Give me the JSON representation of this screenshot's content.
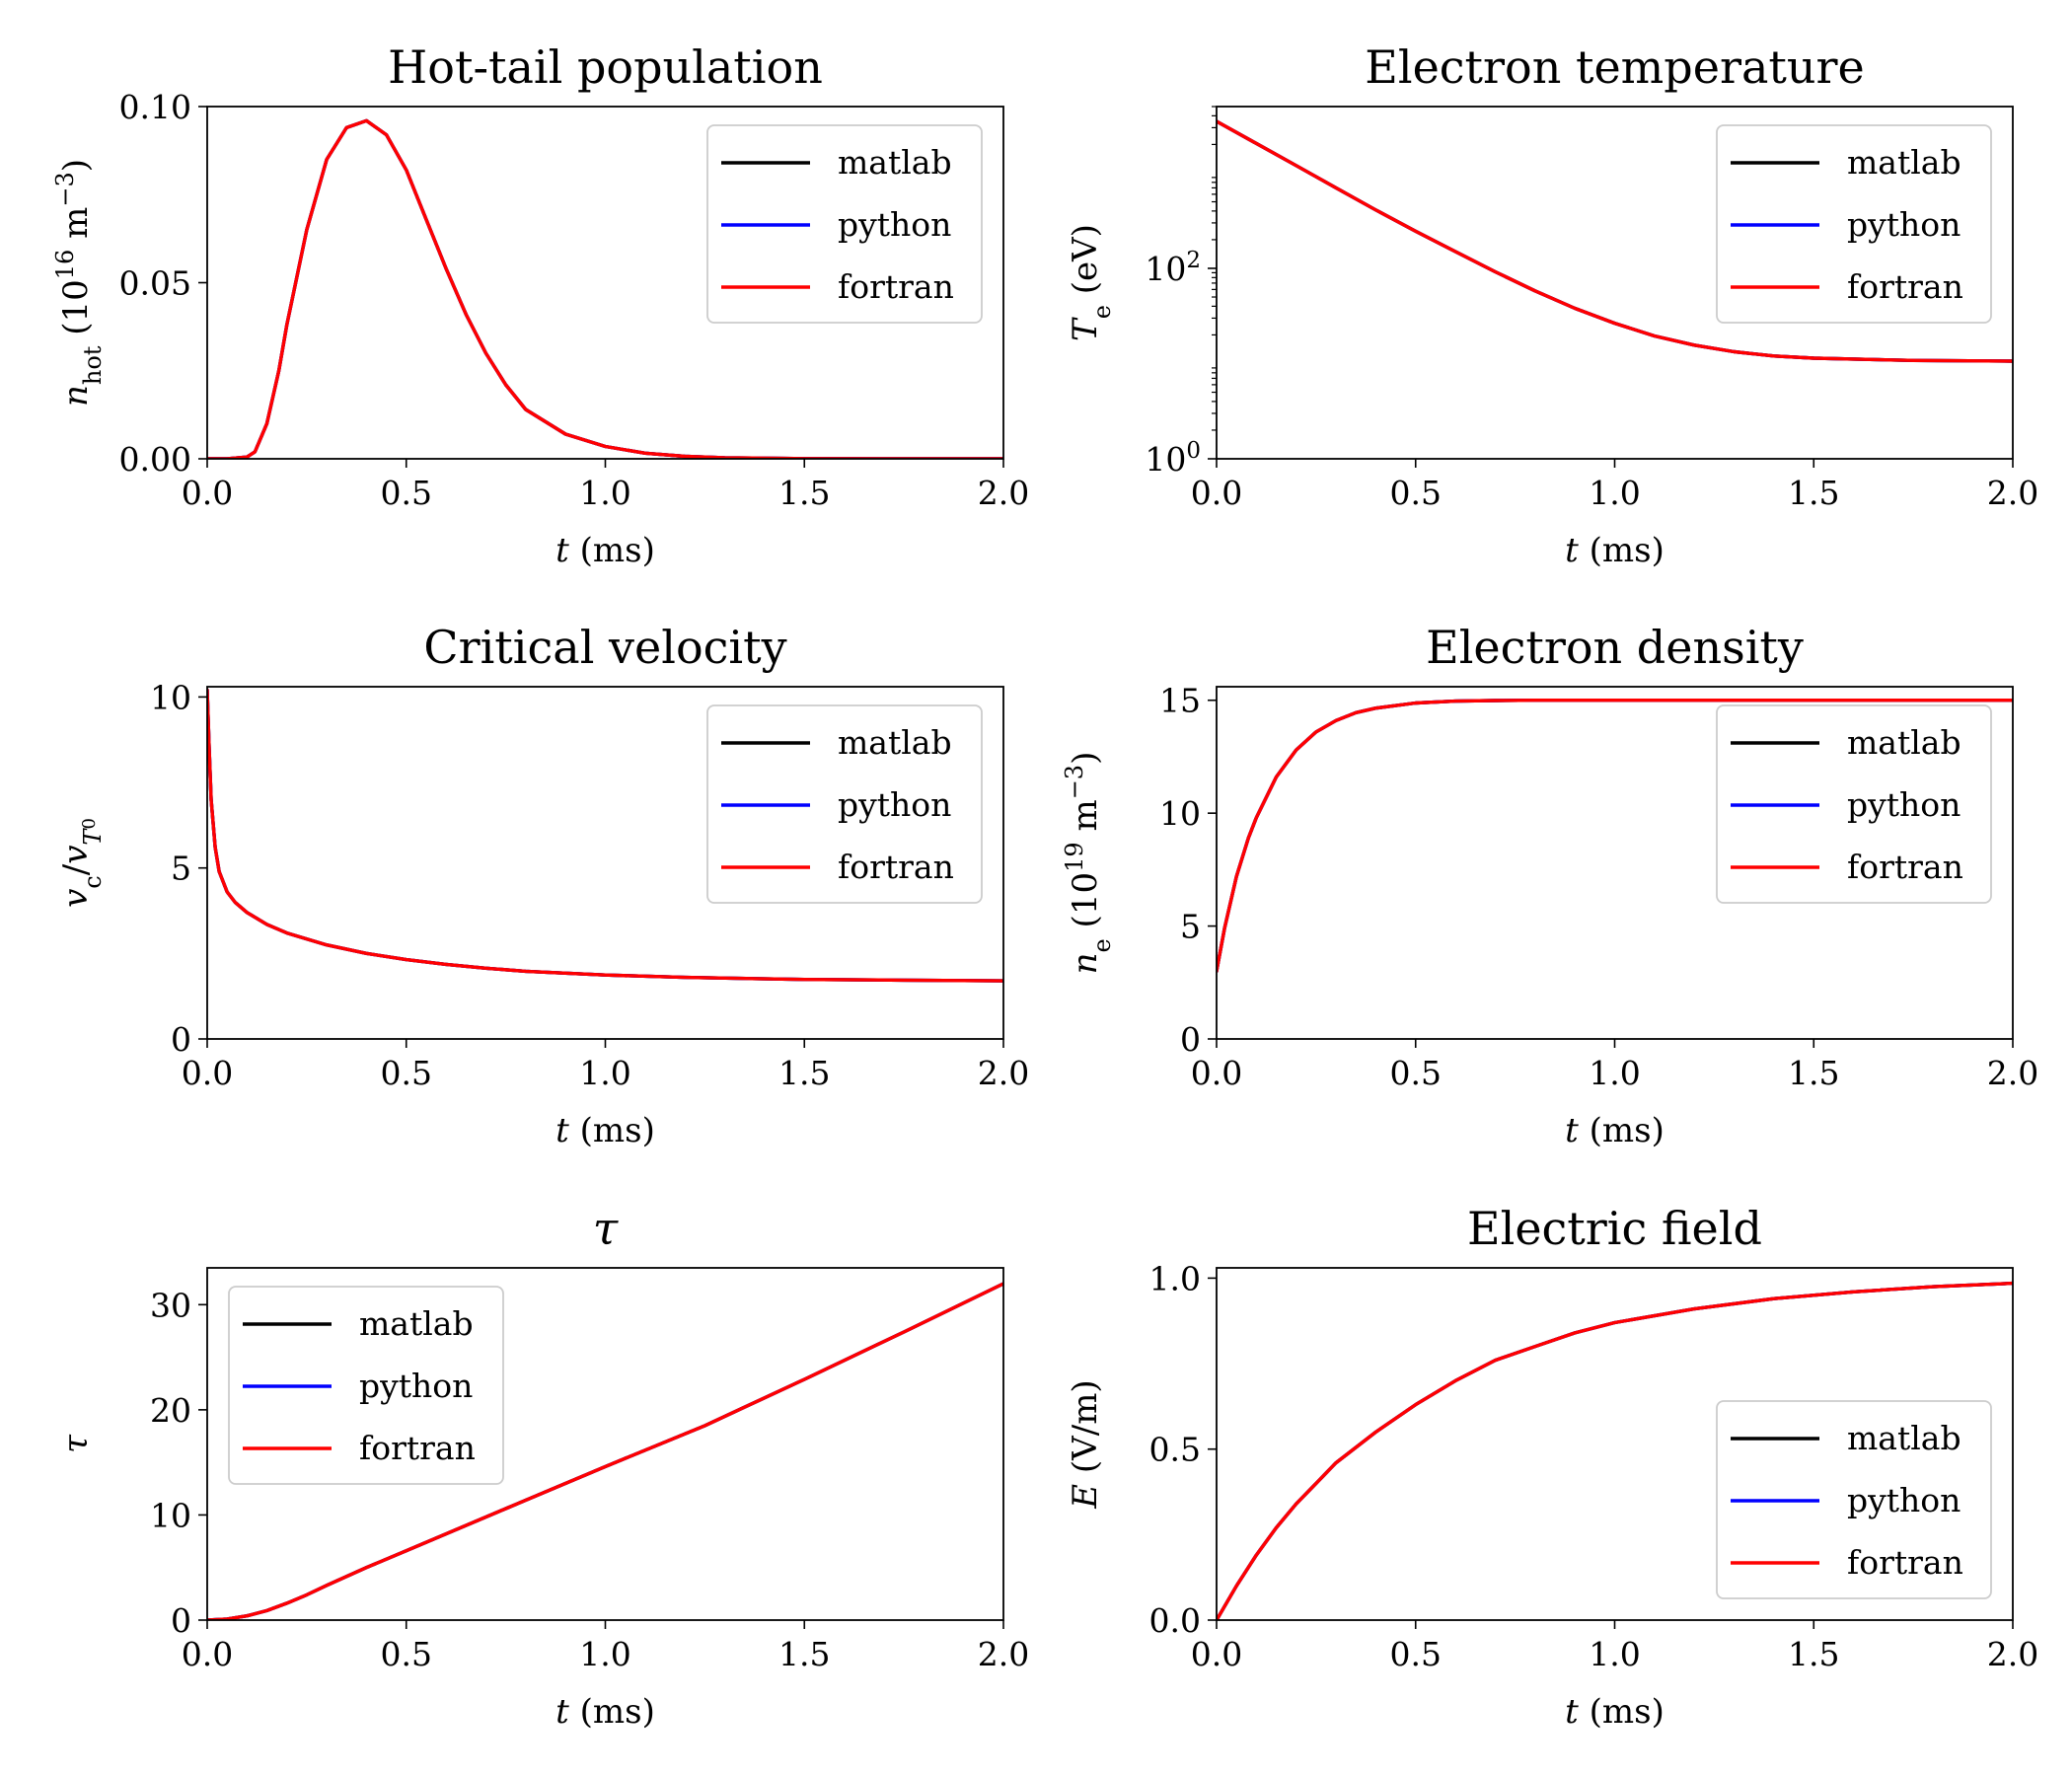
{
  "legend_entries": [
    {
      "label": "matlab",
      "color": "#000000"
    },
    {
      "label": "python",
      "color": "#0000ff"
    },
    {
      "label": "fortran",
      "color": "#ff0000"
    }
  ],
  "chart_data": [
    {
      "type": "line",
      "title": "Hot-tail population",
      "xlabel": "t (ms)",
      "ylabel": "n_hot (10^16 m^-3)",
      "ylabel_parts": {
        "sym": "n",
        "sub": "hot",
        "unit_pre": " (10",
        "exp": "16",
        "unit_mid": " m",
        "exp2": "−3",
        "unit_post": ")"
      },
      "xlim": [
        0,
        2.0
      ],
      "ylim": [
        0,
        0.1
      ],
      "yscale": "linear",
      "xticks": [
        "0.0",
        "0.5",
        "1.0",
        "1.5",
        "2.0"
      ],
      "yticks": [
        {
          "v": 0,
          "t": "0.00"
        },
        {
          "v": 0.05,
          "t": "0.05"
        },
        {
          "v": 0.1,
          "t": "0.10"
        }
      ],
      "legend_position": "top-right",
      "series": [
        {
          "name": "matlab",
          "x": [
            0,
            0.05,
            0.1,
            0.12,
            0.15,
            0.18,
            0.2,
            0.25,
            0.3,
            0.35,
            0.4,
            0.45,
            0.5,
            0.55,
            0.6,
            0.65,
            0.7,
            0.75,
            0.8,
            0.9,
            1.0,
            1.1,
            1.2,
            1.3,
            1.5,
            1.75,
            2.0
          ],
          "y": [
            0,
            0,
            0.0005,
            0.002,
            0.01,
            0.025,
            0.038,
            0.065,
            0.085,
            0.094,
            0.096,
            0.092,
            0.082,
            0.068,
            0.054,
            0.041,
            0.03,
            0.021,
            0.014,
            0.007,
            0.0035,
            0.0016,
            0.0007,
            0.0003,
            5e-05,
            0,
            0
          ]
        },
        {
          "name": "python",
          "x": [
            0,
            0.05,
            0.1,
            0.12,
            0.15,
            0.18,
            0.2,
            0.25,
            0.3,
            0.35,
            0.4,
            0.45,
            0.5,
            0.55,
            0.6,
            0.65,
            0.7,
            0.75,
            0.8,
            0.9,
            1.0,
            1.1,
            1.2,
            1.3,
            1.5,
            1.75,
            2.0
          ],
          "y": [
            0,
            0,
            0.0005,
            0.002,
            0.01,
            0.025,
            0.038,
            0.065,
            0.085,
            0.094,
            0.096,
            0.092,
            0.082,
            0.068,
            0.054,
            0.041,
            0.03,
            0.021,
            0.014,
            0.007,
            0.0035,
            0.0016,
            0.0007,
            0.0003,
            5e-05,
            0,
            0
          ]
        },
        {
          "name": "fortran",
          "x": [
            0,
            0.05,
            0.1,
            0.12,
            0.15,
            0.18,
            0.2,
            0.25,
            0.3,
            0.35,
            0.4,
            0.45,
            0.5,
            0.55,
            0.6,
            0.65,
            0.7,
            0.75,
            0.8,
            0.9,
            1.0,
            1.1,
            1.2,
            1.3,
            1.5,
            1.75,
            2.0
          ],
          "y": [
            0,
            0,
            0.0005,
            0.002,
            0.01,
            0.025,
            0.038,
            0.065,
            0.085,
            0.094,
            0.096,
            0.092,
            0.082,
            0.068,
            0.054,
            0.041,
            0.03,
            0.021,
            0.014,
            0.007,
            0.0035,
            0.0016,
            0.0007,
            0.0003,
            5e-05,
            0,
            0
          ]
        }
      ]
    },
    {
      "type": "line",
      "title": "Electron temperature",
      "xlabel": "t (ms)",
      "ylabel": "T_e (eV)",
      "ylabel_parts": {
        "sym": "T",
        "sub": "e",
        "unit_pre": " (eV)"
      },
      "xlim": [
        0,
        2.0
      ],
      "ylim": [
        1,
        5000
      ],
      "yscale": "log",
      "xticks": [
        "0.0",
        "0.5",
        "1.0",
        "1.5",
        "2.0"
      ],
      "yticks": [
        {
          "v": 1,
          "t": "10",
          "exp": "0"
        },
        {
          "v": 100,
          "t": "10",
          "exp": "2"
        }
      ],
      "legend_position": "top-right",
      "series": [
        {
          "name": "matlab",
          "x": [
            0,
            0.1,
            0.2,
            0.3,
            0.4,
            0.5,
            0.6,
            0.7,
            0.8,
            0.9,
            1.0,
            1.1,
            1.2,
            1.3,
            1.4,
            1.5,
            1.75,
            2.0
          ],
          "y": [
            3500,
            2050,
            1200,
            700,
            410,
            245,
            150,
            92,
            58,
            38,
            26.5,
            19.5,
            15.6,
            13.3,
            12.0,
            11.4,
            10.8,
            10.6
          ]
        },
        {
          "name": "python",
          "x": [
            0,
            0.1,
            0.2,
            0.3,
            0.4,
            0.5,
            0.6,
            0.7,
            0.8,
            0.9,
            1.0,
            1.1,
            1.2,
            1.3,
            1.4,
            1.5,
            1.75,
            2.0
          ],
          "y": [
            3500,
            2050,
            1200,
            700,
            410,
            245,
            150,
            92,
            58,
            38,
            26.5,
            19.5,
            15.6,
            13.3,
            12.0,
            11.4,
            10.8,
            10.6
          ]
        },
        {
          "name": "fortran",
          "x": [
            0,
            0.1,
            0.2,
            0.3,
            0.4,
            0.5,
            0.6,
            0.7,
            0.8,
            0.9,
            1.0,
            1.1,
            1.2,
            1.3,
            1.4,
            1.5,
            1.75,
            2.0
          ],
          "y": [
            3500,
            2050,
            1200,
            700,
            410,
            245,
            150,
            92,
            58,
            38,
            26.5,
            19.5,
            15.6,
            13.3,
            12.0,
            11.4,
            10.8,
            10.6
          ]
        }
      ]
    },
    {
      "type": "line",
      "title": "Critical velocity",
      "xlabel": "t (ms)",
      "ylabel": "v_c/v_T0",
      "ylabel_parts": {
        "sym": "v",
        "sub": "c",
        "unit_pre": "/",
        "sym2": "v",
        "sub2": "T",
        "sub3": "0"
      },
      "xlim": [
        0,
        2.0
      ],
      "ylim": [
        0,
        10.3
      ],
      "yscale": "linear",
      "xticks": [
        "0.0",
        "0.5",
        "1.0",
        "1.5",
        "2.0"
      ],
      "yticks": [
        {
          "v": 0,
          "t": "0"
        },
        {
          "v": 5,
          "t": "5"
        },
        {
          "v": 10,
          "t": "10"
        }
      ],
      "legend_position": "top-right",
      "series": [
        {
          "name": "matlab",
          "x": [
            0,
            0.005,
            0.01,
            0.02,
            0.03,
            0.05,
            0.07,
            0.1,
            0.15,
            0.2,
            0.3,
            0.4,
            0.5,
            0.6,
            0.7,
            0.8,
            1.0,
            1.2,
            1.5,
            1.75,
            2.0
          ],
          "y": [
            10.2,
            8.5,
            7.0,
            5.6,
            4.9,
            4.3,
            4.0,
            3.7,
            3.35,
            3.1,
            2.75,
            2.5,
            2.32,
            2.18,
            2.07,
            1.98,
            1.87,
            1.8,
            1.74,
            1.72,
            1.7
          ]
        },
        {
          "name": "python",
          "x": [
            0,
            0.005,
            0.01,
            0.02,
            0.03,
            0.05,
            0.07,
            0.1,
            0.15,
            0.2,
            0.3,
            0.4,
            0.5,
            0.6,
            0.7,
            0.8,
            1.0,
            1.2,
            1.5,
            1.75,
            2.0
          ],
          "y": [
            10.2,
            8.5,
            7.0,
            5.6,
            4.9,
            4.3,
            4.0,
            3.7,
            3.35,
            3.1,
            2.75,
            2.5,
            2.32,
            2.18,
            2.07,
            1.98,
            1.87,
            1.8,
            1.74,
            1.72,
            1.7
          ]
        },
        {
          "name": "fortran",
          "x": [
            0,
            0.005,
            0.01,
            0.02,
            0.03,
            0.05,
            0.07,
            0.1,
            0.15,
            0.2,
            0.3,
            0.4,
            0.5,
            0.6,
            0.7,
            0.8,
            1.0,
            1.2,
            1.5,
            1.75,
            2.0
          ],
          "y": [
            10.2,
            8.5,
            7.0,
            5.6,
            4.9,
            4.3,
            4.0,
            3.7,
            3.35,
            3.1,
            2.75,
            2.5,
            2.32,
            2.18,
            2.07,
            1.98,
            1.87,
            1.8,
            1.74,
            1.72,
            1.7
          ]
        }
      ]
    },
    {
      "type": "line",
      "title": "Electron density",
      "xlabel": "t (ms)",
      "ylabel": "n_e (10^19 m^-3)",
      "ylabel_parts": {
        "sym": "n",
        "sub": "e",
        "unit_pre": " (10",
        "exp": "19",
        "unit_mid": " m",
        "exp2": "−3",
        "unit_post": ")"
      },
      "xlim": [
        0,
        2.0
      ],
      "ylim": [
        0,
        15.6
      ],
      "yscale": "linear",
      "xticks": [
        "0.0",
        "0.5",
        "1.0",
        "1.5",
        "2.0"
      ],
      "yticks": [
        {
          "v": 0,
          "t": "0"
        },
        {
          "v": 5,
          "t": "5"
        },
        {
          "v": 10,
          "t": "10"
        },
        {
          "v": 15,
          "t": "15"
        }
      ],
      "legend_position": "top-right",
      "series": [
        {
          "name": "matlab",
          "x": [
            0,
            0.02,
            0.05,
            0.08,
            0.1,
            0.15,
            0.2,
            0.25,
            0.3,
            0.35,
            0.4,
            0.5,
            0.6,
            0.7,
            0.8,
            1.0,
            1.25,
            1.5,
            2.0
          ],
          "y": [
            3.0,
            4.9,
            7.2,
            8.9,
            9.8,
            11.6,
            12.8,
            13.6,
            14.1,
            14.45,
            14.65,
            14.88,
            14.96,
            14.99,
            15.0,
            15.0,
            15.0,
            15.0,
            15.0
          ]
        },
        {
          "name": "python",
          "x": [
            0,
            0.02,
            0.05,
            0.08,
            0.1,
            0.15,
            0.2,
            0.25,
            0.3,
            0.35,
            0.4,
            0.5,
            0.6,
            0.7,
            0.8,
            1.0,
            1.25,
            1.5,
            2.0
          ],
          "y": [
            3.0,
            4.9,
            7.2,
            8.9,
            9.8,
            11.6,
            12.8,
            13.6,
            14.1,
            14.45,
            14.65,
            14.88,
            14.96,
            14.99,
            15.0,
            15.0,
            15.0,
            15.0,
            15.0
          ]
        },
        {
          "name": "fortran",
          "x": [
            0,
            0.02,
            0.05,
            0.08,
            0.1,
            0.15,
            0.2,
            0.25,
            0.3,
            0.35,
            0.4,
            0.5,
            0.6,
            0.7,
            0.8,
            1.0,
            1.25,
            1.5,
            2.0
          ],
          "y": [
            3.0,
            4.9,
            7.2,
            8.9,
            9.8,
            11.6,
            12.8,
            13.6,
            14.1,
            14.45,
            14.65,
            14.88,
            14.96,
            14.99,
            15.0,
            15.0,
            15.0,
            15.0,
            15.0
          ]
        }
      ]
    },
    {
      "type": "line",
      "title": "τ",
      "title_italic": true,
      "xlabel": "t (ms)",
      "ylabel": "τ",
      "ylabel_parts": {
        "sym": "τ"
      },
      "xlim": [
        0,
        2.0
      ],
      "ylim": [
        0,
        33.5
      ],
      "yscale": "linear",
      "xticks": [
        "0.0",
        "0.5",
        "1.0",
        "1.5",
        "2.0"
      ],
      "yticks": [
        {
          "v": 0,
          "t": "0"
        },
        {
          "v": 10,
          "t": "10"
        },
        {
          "v": 20,
          "t": "20"
        },
        {
          "v": 30,
          "t": "30"
        }
      ],
      "legend_position": "top-left",
      "series": [
        {
          "name": "matlab",
          "x": [
            0,
            0.05,
            0.1,
            0.15,
            0.2,
            0.25,
            0.3,
            0.4,
            0.5,
            0.75,
            1.0,
            1.25,
            1.5,
            1.75,
            2.0
          ],
          "y": [
            0,
            0.1,
            0.4,
            0.9,
            1.6,
            2.4,
            3.3,
            5.0,
            6.6,
            10.6,
            14.6,
            18.5,
            22.9,
            27.4,
            32.0
          ]
        },
        {
          "name": "python",
          "x": [
            0,
            0.05,
            0.1,
            0.15,
            0.2,
            0.25,
            0.3,
            0.4,
            0.5,
            0.75,
            1.0,
            1.25,
            1.5,
            1.75,
            2.0
          ],
          "y": [
            0,
            0.1,
            0.4,
            0.9,
            1.6,
            2.4,
            3.3,
            5.0,
            6.6,
            10.6,
            14.6,
            18.5,
            22.9,
            27.4,
            32.0
          ]
        },
        {
          "name": "fortran",
          "x": [
            0,
            0.05,
            0.1,
            0.15,
            0.2,
            0.25,
            0.3,
            0.4,
            0.5,
            0.75,
            1.0,
            1.25,
            1.5,
            1.75,
            2.0
          ],
          "y": [
            0,
            0.1,
            0.4,
            0.9,
            1.6,
            2.4,
            3.3,
            5.0,
            6.6,
            10.6,
            14.6,
            18.5,
            22.9,
            27.4,
            32.0
          ]
        }
      ]
    },
    {
      "type": "line",
      "title": "Electric field",
      "xlabel": "t (ms)",
      "ylabel": "E (V/m)",
      "ylabel_parts": {
        "sym": "E",
        "unit_pre": " (V/m)"
      },
      "xlim": [
        0,
        2.0
      ],
      "ylim": [
        0,
        1.03
      ],
      "yscale": "linear",
      "xticks": [
        "0.0",
        "0.5",
        "1.0",
        "1.5",
        "2.0"
      ],
      "yticks": [
        {
          "v": 0,
          "t": "0.0"
        },
        {
          "v": 0.5,
          "t": "0.5"
        },
        {
          "v": 1.0,
          "t": "1.0"
        }
      ],
      "legend_position": "center-right",
      "series": [
        {
          "name": "matlab",
          "x": [
            0,
            0.05,
            0.1,
            0.15,
            0.2,
            0.25,
            0.3,
            0.4,
            0.5,
            0.6,
            0.7,
            0.8,
            0.9,
            1.0,
            1.2,
            1.4,
            1.6,
            1.8,
            2.0
          ],
          "y": [
            0,
            0.1,
            0.19,
            0.27,
            0.34,
            0.4,
            0.46,
            0.55,
            0.63,
            0.7,
            0.76,
            0.8,
            0.84,
            0.87,
            0.91,
            0.94,
            0.96,
            0.975,
            0.985
          ]
        },
        {
          "name": "python",
          "x": [
            0,
            0.05,
            0.1,
            0.15,
            0.2,
            0.25,
            0.3,
            0.4,
            0.5,
            0.6,
            0.7,
            0.8,
            0.9,
            1.0,
            1.2,
            1.4,
            1.6,
            1.8,
            2.0
          ],
          "y": [
            0,
            0.1,
            0.19,
            0.27,
            0.34,
            0.4,
            0.46,
            0.55,
            0.63,
            0.7,
            0.76,
            0.8,
            0.84,
            0.87,
            0.91,
            0.94,
            0.96,
            0.975,
            0.985
          ]
        },
        {
          "name": "fortran",
          "x": [
            0,
            0.05,
            0.1,
            0.15,
            0.2,
            0.25,
            0.3,
            0.4,
            0.5,
            0.6,
            0.7,
            0.8,
            0.9,
            1.0,
            1.2,
            1.4,
            1.6,
            1.8,
            2.0
          ],
          "y": [
            0,
            0.1,
            0.19,
            0.27,
            0.34,
            0.4,
            0.46,
            0.55,
            0.63,
            0.7,
            0.76,
            0.8,
            0.84,
            0.87,
            0.91,
            0.94,
            0.96,
            0.975,
            0.985
          ]
        }
      ]
    }
  ]
}
